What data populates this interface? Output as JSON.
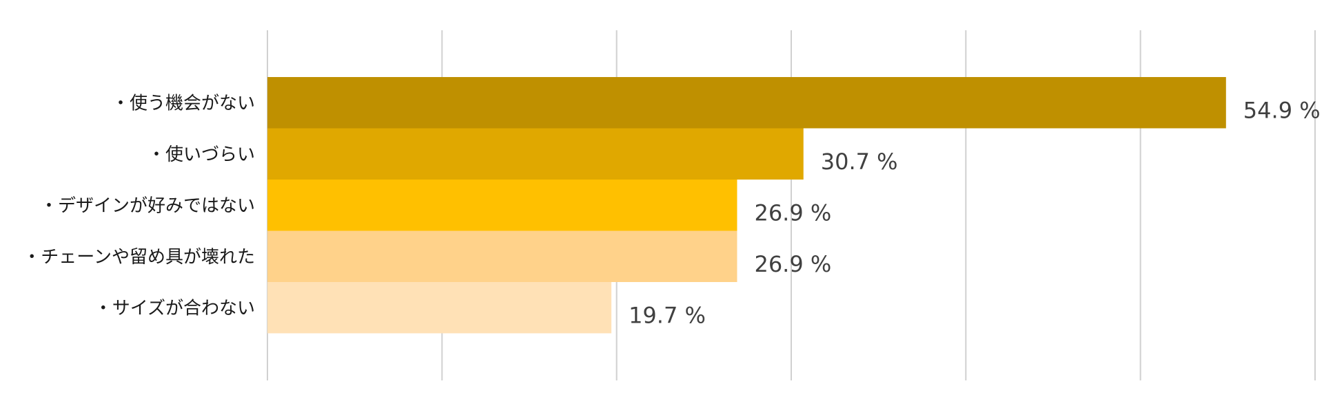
{
  "chart_data": {
    "type": "bar",
    "orientation": "horizontal",
    "categories": [
      "・使う機会がない",
      "・使いづらい",
      "・デザインが好みではない",
      "・チェーンや留め具が壊れた",
      "・サイズが合わない"
    ],
    "values": [
      54.9,
      30.7,
      26.9,
      26.9,
      19.7
    ],
    "value_labels": [
      "54.9 %",
      "30.7 %",
      "26.9 %",
      "26.9 %",
      "19.7 %"
    ],
    "bar_colors": [
      "#BF9000",
      "#E0A800",
      "#FFC000",
      "#FFD28A",
      "#FFE1B6"
    ],
    "xlim": [
      0,
      60
    ],
    "x_gridline_step": 10,
    "grid": true,
    "x_tick_labels_visible": false,
    "legend": "none",
    "title": "",
    "xlabel": "",
    "ylabel": ""
  }
}
